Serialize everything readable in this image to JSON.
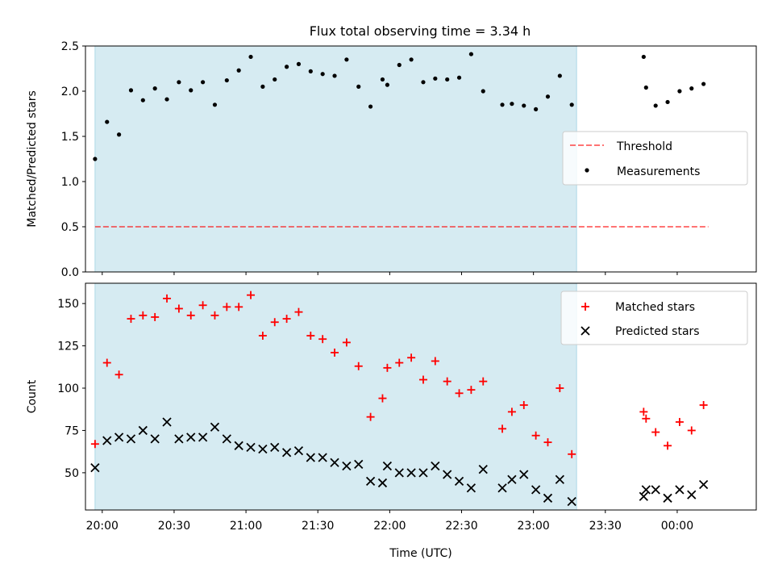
{
  "title": "Flux total observing time = 3.34 h",
  "colors": {
    "shade": "#add8e6",
    "threshold": "#ff0000",
    "measurements": "#000000",
    "matched": "#ff0000",
    "predicted": "#000000"
  },
  "chart_data": [
    {
      "type": "scatter",
      "ylabel": "Matched/Predicted stars",
      "xlim": [
        "19:53",
        "00:33"
      ],
      "ylim": [
        0,
        2.5
      ],
      "yticks": [
        "0.0",
        "0.5",
        "1.0",
        "1.5",
        "2.0",
        "2.5"
      ],
      "shaded_region": [
        "19:57",
        "23:18"
      ],
      "legend_position": "center-right",
      "threshold": {
        "name": "Threshold",
        "value": 0.5,
        "x_range": [
          "19:57",
          "00:13"
        ],
        "style": "dashed"
      },
      "series": [
        {
          "name": "Measurements",
          "x": [
            "19:57",
            "20:02",
            "20:07",
            "20:12",
            "20:17",
            "20:22",
            "20:27",
            "20:32",
            "20:37",
            "20:42",
            "20:47",
            "20:52",
            "20:57",
            "21:02",
            "21:07",
            "21:12",
            "21:17",
            "21:22",
            "21:27",
            "21:32",
            "21:37",
            "21:42",
            "21:47",
            "21:52",
            "21:57",
            "21:59",
            "22:04",
            "22:09",
            "22:14",
            "22:19",
            "22:24",
            "22:29",
            "22:34",
            "22:39",
            "22:47",
            "22:51",
            "22:56",
            "23:01",
            "23:06",
            "23:11",
            "23:16",
            "23:46",
            "23:47",
            "23:51",
            "23:56",
            "24:01",
            "24:06",
            "24:11"
          ],
          "y": [
            1.25,
            1.66,
            1.52,
            2.01,
            1.9,
            2.03,
            1.91,
            2.1,
            2.01,
            2.1,
            1.85,
            2.12,
            2.23,
            2.38,
            2.05,
            2.13,
            2.27,
            2.3,
            2.22,
            2.19,
            2.17,
            2.35,
            2.05,
            1.83,
            2.13,
            2.07,
            2.29,
            2.35,
            2.1,
            2.14,
            2.13,
            2.15,
            2.41,
            2.0,
            1.85,
            1.86,
            1.84,
            1.8,
            1.94,
            2.17,
            1.85,
            2.38,
            2.04,
            1.84,
            1.88,
            2.0,
            2.03,
            2.08
          ]
        }
      ]
    },
    {
      "type": "scatter",
      "xlabel": "Time (UTC)",
      "ylabel": "Count",
      "xlim": [
        "19:53",
        "00:33"
      ],
      "ylim": [
        28,
        162
      ],
      "yticks": [
        "50",
        "75",
        "100",
        "125",
        "150"
      ],
      "xticks": [
        "20:00",
        "20:30",
        "21:00",
        "21:30",
        "22:00",
        "22:30",
        "23:00",
        "23:30",
        "00:00"
      ],
      "shaded_region": [
        "19:57",
        "23:18"
      ],
      "legend_position": "upper-right",
      "series": [
        {
          "name": "Matched stars",
          "marker": "+",
          "x": [
            "19:57",
            "20:02",
            "20:07",
            "20:12",
            "20:17",
            "20:22",
            "20:27",
            "20:32",
            "20:37",
            "20:42",
            "20:47",
            "20:52",
            "20:57",
            "21:02",
            "21:07",
            "21:12",
            "21:17",
            "21:22",
            "21:27",
            "21:32",
            "21:37",
            "21:42",
            "21:47",
            "21:52",
            "21:57",
            "21:59",
            "22:04",
            "22:09",
            "22:14",
            "22:19",
            "22:24",
            "22:29",
            "22:34",
            "22:39",
            "22:47",
            "22:51",
            "22:56",
            "23:01",
            "23:06",
            "23:11",
            "23:16",
            "23:46",
            "23:47",
            "23:51",
            "23:56",
            "24:01",
            "24:06",
            "24:11"
          ],
          "y": [
            67,
            115,
            108,
            141,
            143,
            142,
            153,
            147,
            143,
            149,
            143,
            148,
            148,
            155,
            131,
            139,
            141,
            145,
            131,
            129,
            121,
            127,
            113,
            83,
            94,
            112,
            115,
            118,
            105,
            116,
            104,
            97,
            99,
            104,
            76,
            86,
            90,
            72,
            68,
            100,
            61,
            86,
            82,
            74,
            66,
            80,
            75,
            90
          ]
        },
        {
          "name": "Predicted stars",
          "marker": "x",
          "x": [
            "19:57",
            "20:02",
            "20:07",
            "20:12",
            "20:17",
            "20:22",
            "20:27",
            "20:32",
            "20:37",
            "20:42",
            "20:47",
            "20:52",
            "20:57",
            "21:02",
            "21:07",
            "21:12",
            "21:17",
            "21:22",
            "21:27",
            "21:32",
            "21:37",
            "21:42",
            "21:47",
            "21:52",
            "21:57",
            "21:59",
            "22:04",
            "22:09",
            "22:14",
            "22:19",
            "22:24",
            "22:29",
            "22:34",
            "22:39",
            "22:47",
            "22:51",
            "22:56",
            "23:01",
            "23:06",
            "23:11",
            "23:16",
            "23:46",
            "23:47",
            "23:51",
            "23:56",
            "24:01",
            "24:06",
            "24:11"
          ],
          "y": [
            53,
            69,
            71,
            70,
            75,
            70,
            80,
            70,
            71,
            71,
            77,
            70,
            66,
            65,
            64,
            65,
            62,
            63,
            59,
            59,
            56,
            54,
            55,
            45,
            44,
            54,
            50,
            50,
            50,
            54,
            49,
            45,
            41,
            52,
            41,
            46,
            49,
            40,
            35,
            46,
            33,
            36,
            40,
            40,
            35,
            40,
            37,
            43
          ]
        }
      ]
    }
  ]
}
